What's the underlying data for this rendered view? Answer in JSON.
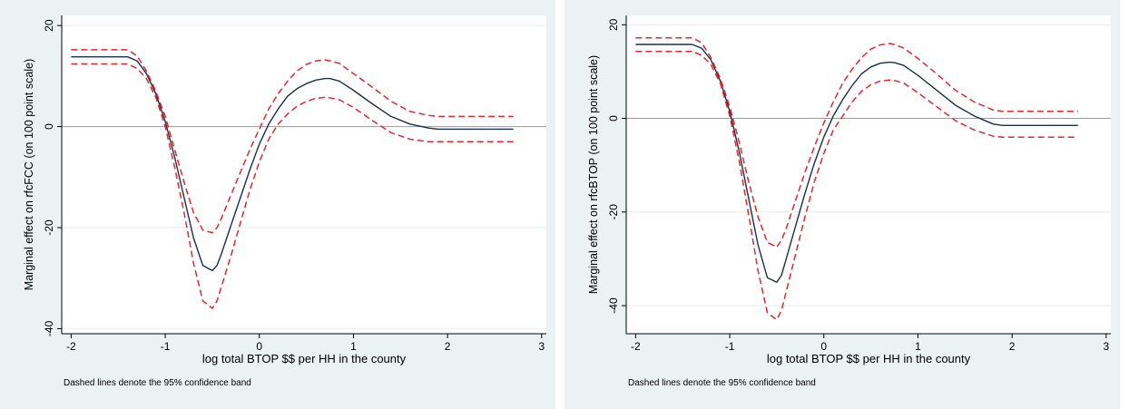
{
  "footnote": "Dashed lines denote the 95% confidence band",
  "chart_data": [
    {
      "type": "line",
      "xlabel": "log total BTOP $$ per HH in the county",
      "ylabel": "Marginal effect on rfcFCC (on 100 point scale)",
      "xlim": [
        -2.1,
        3.05
      ],
      "ylim": [
        -41,
        22
      ],
      "xticks": [
        -2,
        -1,
        0,
        1,
        2,
        3
      ],
      "yticks": [
        -40,
        -20,
        0,
        20
      ],
      "grid": true,
      "reference_line_y": 0,
      "series": [
        {
          "role": "estimate",
          "color": "#1a2f4a",
          "dashed": false,
          "x": [
            -2,
            -1.4,
            -1.3,
            -1.2,
            -1.1,
            -1.0,
            -0.9,
            -0.8,
            -0.7,
            -0.6,
            -0.5,
            -0.45,
            -0.4,
            -0.3,
            -0.2,
            -0.1,
            0,
            0.1,
            0.2,
            0.3,
            0.4,
            0.5,
            0.6,
            0.7,
            0.75,
            0.85,
            1.0,
            1.2,
            1.4,
            1.6,
            1.8,
            1.9,
            2.1,
            2.4,
            2.7
          ],
          "y": [
            13.8,
            13.8,
            13.0,
            10.5,
            6.5,
            1.0,
            -6.0,
            -14.0,
            -22.0,
            -27.5,
            -28.5,
            -27.5,
            -25.0,
            -19.5,
            -14.0,
            -8.5,
            -3.5,
            0.5,
            3.5,
            6.0,
            7.5,
            8.5,
            9.2,
            9.5,
            9.5,
            9.0,
            7.2,
            4.5,
            2.0,
            0.5,
            -0.3,
            -0.5,
            -0.5,
            -0.5,
            -0.5
          ]
        },
        {
          "role": "upper-95",
          "color": "#e8262b",
          "dashed": true,
          "x": [
            -2,
            -1.4,
            -1.3,
            -1.2,
            -1.1,
            -1.0,
            -0.9,
            -0.8,
            -0.7,
            -0.6,
            -0.5,
            -0.45,
            -0.4,
            -0.3,
            -0.2,
            -0.1,
            0,
            0.1,
            0.2,
            0.3,
            0.4,
            0.5,
            0.6,
            0.7,
            0.75,
            0.85,
            1.0,
            1.2,
            1.4,
            1.6,
            1.8,
            1.9,
            2.1,
            2.4,
            2.7
          ],
          "y": [
            15.2,
            15.2,
            14.0,
            11.0,
            7.0,
            2.0,
            -4.5,
            -11.0,
            -17.0,
            -20.5,
            -21.0,
            -20.0,
            -18.0,
            -13.5,
            -9.0,
            -4.5,
            -0.5,
            3.5,
            6.5,
            9.0,
            11.0,
            12.3,
            13.0,
            13.2,
            13.0,
            12.5,
            10.5,
            7.8,
            5.0,
            3.0,
            2.2,
            2.0,
            2.0,
            2.0,
            2.0
          ]
        },
        {
          "role": "lower-95",
          "color": "#e8262b",
          "dashed": true,
          "x": [
            -2,
            -1.4,
            -1.3,
            -1.2,
            -1.1,
            -1.0,
            -0.9,
            -0.8,
            -0.7,
            -0.6,
            -0.5,
            -0.45,
            -0.4,
            -0.3,
            -0.2,
            -0.1,
            0,
            0.1,
            0.2,
            0.3,
            0.4,
            0.5,
            0.6,
            0.7,
            0.75,
            0.85,
            1.0,
            1.2,
            1.4,
            1.6,
            1.8,
            1.9,
            2.1,
            2.4,
            2.7
          ],
          "y": [
            12.4,
            12.4,
            11.5,
            9.5,
            5.8,
            0.0,
            -8.0,
            -17.0,
            -27.0,
            -34.5,
            -36.0,
            -34.5,
            -31.5,
            -25.5,
            -19.0,
            -12.5,
            -7.0,
            -2.5,
            0.5,
            2.5,
            4.0,
            5.0,
            5.6,
            5.8,
            5.7,
            5.3,
            3.8,
            1.2,
            -1.2,
            -2.5,
            -3.0,
            -3.0,
            -3.0,
            -3.0,
            -3.0
          ]
        }
      ]
    },
    {
      "type": "line",
      "xlabel": "log total BTOP $$ per HH in the county",
      "ylabel": "Marginal effect on rfcBTOP (on 100 point scale)",
      "xlim": [
        -2.1,
        3.05
      ],
      "ylim": [
        -46,
        22
      ],
      "xticks": [
        -2,
        -1,
        0,
        1,
        2,
        3
      ],
      "yticks": [
        -40,
        -20,
        0,
        20
      ],
      "grid": true,
      "reference_line_y": 0,
      "series": [
        {
          "role": "estimate",
          "color": "#1a2f4a",
          "dashed": false,
          "x": [
            -2,
            -1.4,
            -1.3,
            -1.2,
            -1.1,
            -1.0,
            -0.9,
            -0.8,
            -0.7,
            -0.6,
            -0.5,
            -0.45,
            -0.4,
            -0.3,
            -0.2,
            -0.1,
            0,
            0.1,
            0.2,
            0.3,
            0.4,
            0.5,
            0.6,
            0.7,
            0.75,
            0.85,
            1.0,
            1.2,
            1.4,
            1.6,
            1.8,
            1.9,
            2.1,
            2.4,
            2.7
          ],
          "y": [
            15.8,
            15.8,
            15.0,
            12.5,
            8.0,
            1.5,
            -7.0,
            -17.0,
            -27.0,
            -34.0,
            -35.0,
            -33.5,
            -30.0,
            -23.0,
            -16.0,
            -9.5,
            -4.0,
            0.5,
            4.0,
            7.0,
            9.5,
            11.0,
            11.8,
            12.0,
            11.9,
            11.3,
            9.2,
            6.0,
            2.8,
            0.5,
            -1.2,
            -1.5,
            -1.5,
            -1.5,
            -1.5
          ]
        },
        {
          "role": "upper-95",
          "color": "#e8262b",
          "dashed": true,
          "x": [
            -2,
            -1.4,
            -1.3,
            -1.2,
            -1.1,
            -1.0,
            -0.9,
            -0.8,
            -0.7,
            -0.6,
            -0.5,
            -0.45,
            -0.4,
            -0.3,
            -0.2,
            -0.1,
            0,
            0.1,
            0.2,
            0.3,
            0.4,
            0.5,
            0.6,
            0.7,
            0.75,
            0.85,
            1.0,
            1.2,
            1.4,
            1.6,
            1.8,
            1.9,
            2.1,
            2.4,
            2.7
          ],
          "y": [
            17.2,
            17.2,
            16.2,
            13.0,
            8.5,
            2.5,
            -5.0,
            -13.5,
            -21.0,
            -26.5,
            -27.5,
            -26.0,
            -23.5,
            -17.5,
            -11.5,
            -6.0,
            -1.0,
            3.5,
            7.5,
            10.5,
            13.0,
            14.8,
            15.7,
            16.0,
            15.8,
            15.0,
            12.8,
            9.5,
            6.0,
            3.5,
            1.8,
            1.5,
            1.5,
            1.5,
            1.5
          ]
        },
        {
          "role": "lower-95",
          "color": "#e8262b",
          "dashed": true,
          "x": [
            -2,
            -1.4,
            -1.3,
            -1.2,
            -1.1,
            -1.0,
            -0.9,
            -0.8,
            -0.7,
            -0.6,
            -0.5,
            -0.45,
            -0.4,
            -0.3,
            -0.2,
            -0.1,
            0,
            0.1,
            0.2,
            0.3,
            0.4,
            0.5,
            0.6,
            0.7,
            0.75,
            0.85,
            1.0,
            1.2,
            1.4,
            1.6,
            1.8,
            1.9,
            2.1,
            2.4,
            2.7
          ],
          "y": [
            14.3,
            14.3,
            13.5,
            11.5,
            7.5,
            0.5,
            -9.0,
            -20.5,
            -32.5,
            -41.5,
            -43.0,
            -41.0,
            -37.0,
            -29.0,
            -21.0,
            -13.5,
            -7.5,
            -2.5,
            0.5,
            3.5,
            5.8,
            7.2,
            8.0,
            8.2,
            8.1,
            7.5,
            5.5,
            2.5,
            -0.5,
            -2.5,
            -3.8,
            -4.0,
            -4.0,
            -4.0,
            -4.0
          ]
        }
      ]
    }
  ]
}
